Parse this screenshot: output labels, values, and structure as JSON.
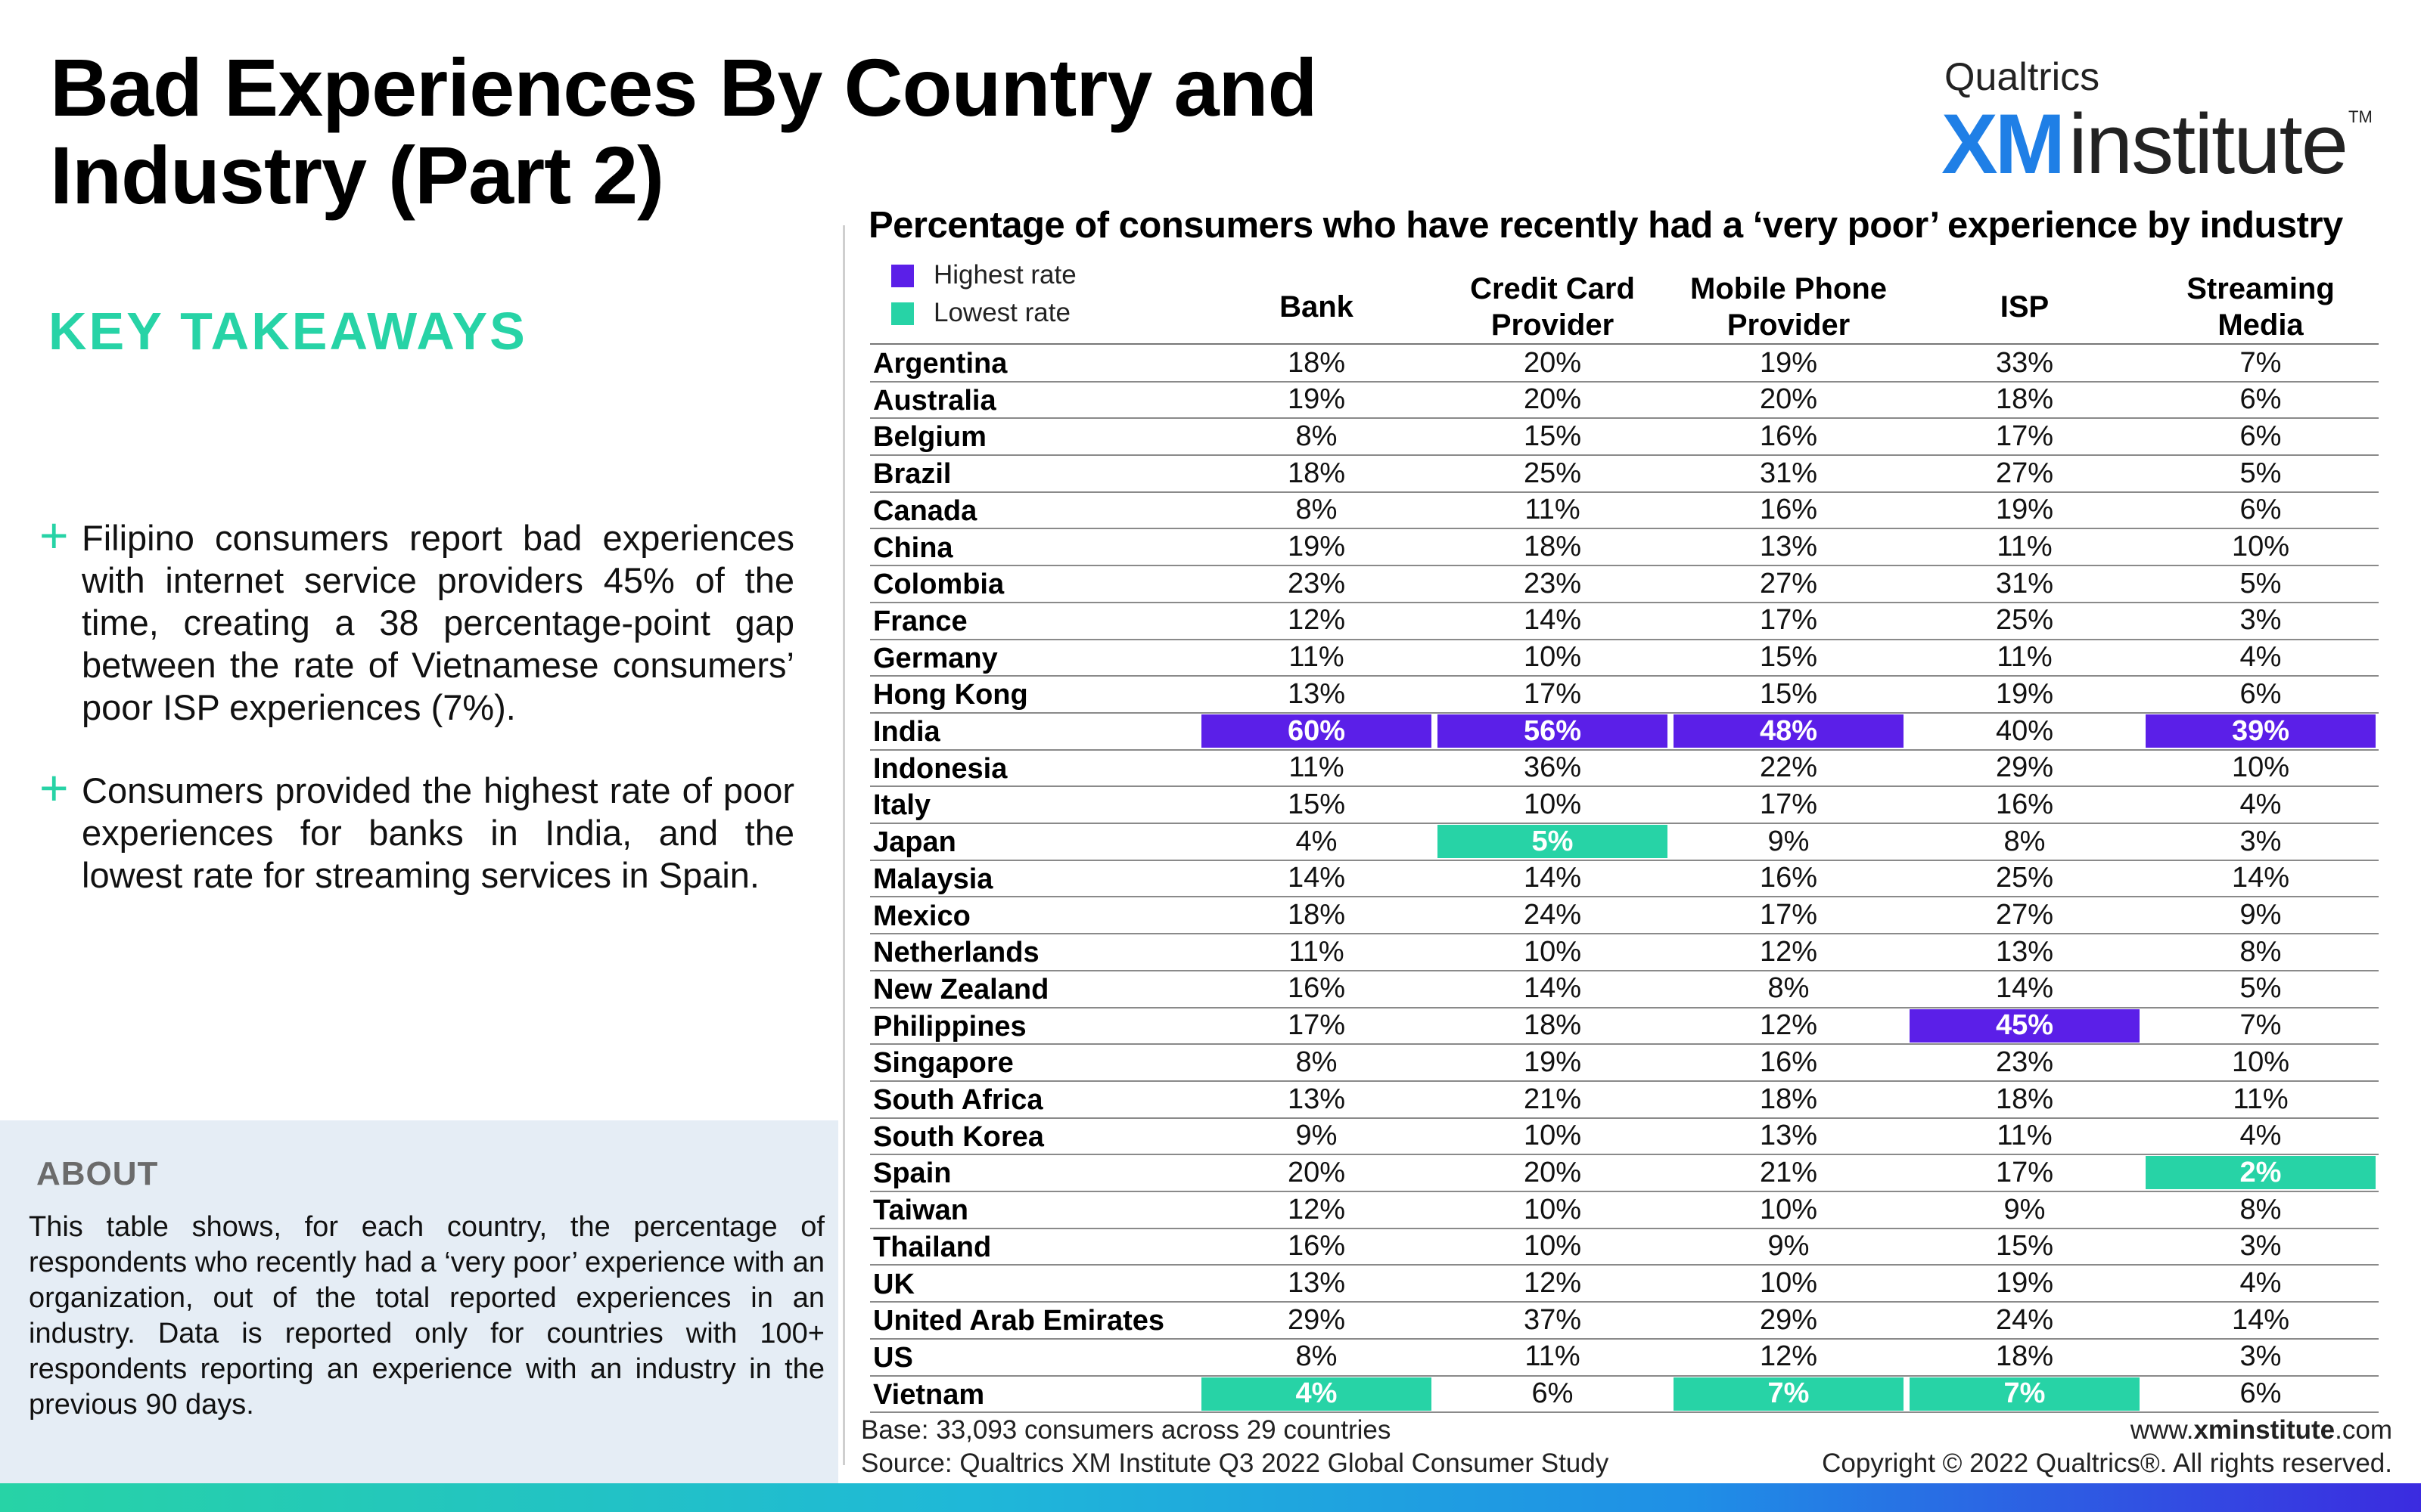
{
  "page": {
    "title": "Bad Experiences By Country and Industry (Part 2)",
    "logo_top": "Qualtrics",
    "logo_xm": "XM",
    "logo_institute": "institute",
    "logo_tm": "TM"
  },
  "left": {
    "key_takeaways": "KEY TAKEAWAYS",
    "takeaway_1": "Filipino consumers report bad experiences with internet service providers 45% of the time, creating a 38 percentage-point gap between the rate of Vietnamese consumers’ poor ISP experiences (7%).",
    "takeaway_2": "Consumers provided the highest rate of poor experiences for banks in India, and the lowest rate for streaming services in Spain.",
    "about_heading": "ABOUT",
    "about_text": "This table shows, for each country, the percentage of respondents who recently had a ‘very poor’ experience with an organization, out of the total reported experiences in an industry. Data is reported only for countries with 100+ respondents reporting an experience with an industry in the previous 90 days."
  },
  "footer": {
    "base": "Base: 33,093 consumers across 29 countries",
    "source": "Source: Qualtrics XM Institute Q3 2022 Global Consumer Study",
    "web_prefix": "www.",
    "web_bold": "xminstitute",
    "web_suffix": ".com",
    "copyright": "Copyright © 2022 Qualtrics®. All rights reserved."
  },
  "colors": {
    "highest": "#5b1fe8",
    "lowest": "#27d3a6",
    "accent": "#27d3a6",
    "logo_blue": "#1f7fe6"
  },
  "chart_data": {
    "type": "table",
    "title": "Percentage of consumers who have recently had a ‘very poor’ experience by industry",
    "legend": [
      {
        "label": "Highest rate",
        "color": "#5b1fe8"
      },
      {
        "label": "Lowest rate",
        "color": "#27d3a6"
      }
    ],
    "columns": [
      "Bank",
      "Credit Card Provider",
      "Mobile Phone Provider",
      "ISP",
      "Streaming Media"
    ],
    "column_labels": [
      [
        "Bank"
      ],
      [
        "Credit Card",
        "Provider"
      ],
      [
        "Mobile Phone",
        "Provider"
      ],
      [
        "ISP"
      ],
      [
        "Streaming",
        "Media"
      ]
    ],
    "rows": [
      {
        "country": "Argentina",
        "values": [
          "18%",
          "20%",
          "19%",
          "33%",
          "7%"
        ]
      },
      {
        "country": "Australia",
        "values": [
          "19%",
          "20%",
          "20%",
          "18%",
          "6%"
        ]
      },
      {
        "country": "Belgium",
        "values": [
          "8%",
          "15%",
          "16%",
          "17%",
          "6%"
        ]
      },
      {
        "country": "Brazil",
        "values": [
          "18%",
          "25%",
          "31%",
          "27%",
          "5%"
        ]
      },
      {
        "country": "Canada",
        "values": [
          "8%",
          "11%",
          "16%",
          "19%",
          "6%"
        ]
      },
      {
        "country": "China",
        "values": [
          "19%",
          "18%",
          "13%",
          "11%",
          "10%"
        ]
      },
      {
        "country": "Colombia",
        "values": [
          "23%",
          "23%",
          "27%",
          "31%",
          "5%"
        ]
      },
      {
        "country": "France",
        "values": [
          "12%",
          "14%",
          "17%",
          "25%",
          "3%"
        ]
      },
      {
        "country": "Germany",
        "values": [
          "11%",
          "10%",
          "15%",
          "11%",
          "4%"
        ]
      },
      {
        "country": "Hong Kong",
        "values": [
          "13%",
          "17%",
          "15%",
          "19%",
          "6%"
        ]
      },
      {
        "country": "India",
        "values": [
          "60%",
          "56%",
          "48%",
          "40%",
          "39%"
        ],
        "marks": [
          "high",
          "high",
          "high",
          "",
          "high"
        ]
      },
      {
        "country": "Indonesia",
        "values": [
          "11%",
          "36%",
          "22%",
          "29%",
          "10%"
        ]
      },
      {
        "country": "Italy",
        "values": [
          "15%",
          "10%",
          "17%",
          "16%",
          "4%"
        ]
      },
      {
        "country": "Japan",
        "values": [
          "4%",
          "5%",
          "9%",
          "8%",
          "3%"
        ],
        "marks": [
          "",
          "low",
          "",
          "",
          ""
        ]
      },
      {
        "country": "Malaysia",
        "values": [
          "14%",
          "14%",
          "16%",
          "25%",
          "14%"
        ]
      },
      {
        "country": "Mexico",
        "values": [
          "18%",
          "24%",
          "17%",
          "27%",
          "9%"
        ]
      },
      {
        "country": "Netherlands",
        "values": [
          "11%",
          "10%",
          "12%",
          "13%",
          "8%"
        ]
      },
      {
        "country": "New Zealand",
        "values": [
          "16%",
          "14%",
          "8%",
          "14%",
          "5%"
        ]
      },
      {
        "country": "Philippines",
        "values": [
          "17%",
          "18%",
          "12%",
          "45%",
          "7%"
        ],
        "marks": [
          "",
          "",
          "",
          "high",
          ""
        ]
      },
      {
        "country": "Singapore",
        "values": [
          "8%",
          "19%",
          "16%",
          "23%",
          "10%"
        ]
      },
      {
        "country": "South Africa",
        "values": [
          "13%",
          "21%",
          "18%",
          "18%",
          "11%"
        ]
      },
      {
        "country": "South Korea",
        "values": [
          "9%",
          "10%",
          "13%",
          "11%",
          "4%"
        ]
      },
      {
        "country": "Spain",
        "values": [
          "20%",
          "20%",
          "21%",
          "17%",
          "2%"
        ],
        "marks": [
          "",
          "",
          "",
          "",
          "low"
        ]
      },
      {
        "country": "Taiwan",
        "values": [
          "12%",
          "10%",
          "10%",
          "9%",
          "8%"
        ]
      },
      {
        "country": "Thailand",
        "values": [
          "16%",
          "10%",
          "9%",
          "15%",
          "3%"
        ]
      },
      {
        "country": "UK",
        "values": [
          "13%",
          "12%",
          "10%",
          "19%",
          "4%"
        ]
      },
      {
        "country": "United Arab Emirates",
        "values": [
          "29%",
          "37%",
          "29%",
          "24%",
          "14%"
        ]
      },
      {
        "country": "US",
        "values": [
          "8%",
          "11%",
          "12%",
          "18%",
          "3%"
        ]
      },
      {
        "country": "Vietnam",
        "values": [
          "4%",
          "6%",
          "7%",
          "7%",
          "6%"
        ],
        "marks": [
          "low",
          "",
          "low",
          "low",
          ""
        ]
      }
    ]
  }
}
